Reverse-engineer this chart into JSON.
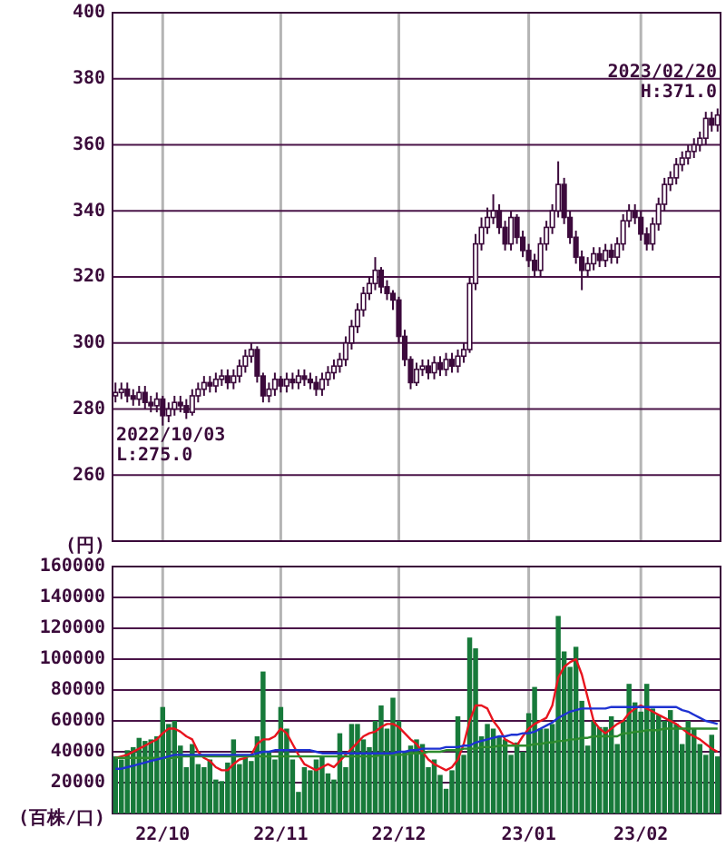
{
  "chart_data": [
    {
      "type": "candlestick",
      "color": "#3c0a3c",
      "ylabel": "(円)",
      "grid": true,
      "tick_labels": "y",
      "ylim": [
        240,
        400
      ],
      "yticks": [
        260,
        280,
        300,
        320,
        340,
        360,
        380,
        400
      ],
      "annotations": [
        "2022/10/03\nL:275.0",
        "2023/02/20\nH:371.0"
      ],
      "categories": [
        null,
        null,
        null,
        null,
        null,
        null,
        null,
        null,
        null,
        null,
        null,
        null,
        null,
        null,
        null,
        null,
        null,
        null,
        null,
        null,
        null,
        null,
        null,
        null,
        null,
        null,
        null,
        null,
        null,
        null,
        null,
        null,
        null,
        null,
        null,
        null,
        null,
        null,
        null,
        null,
        null,
        null,
        null,
        null,
        null,
        null,
        null,
        null,
        null,
        null,
        null,
        null,
        null,
        null,
        null,
        null,
        null,
        null,
        null,
        null,
        null,
        null,
        null,
        null,
        null,
        null,
        null,
        null,
        null,
        null,
        null,
        null,
        null,
        null,
        null,
        null,
        null,
        null,
        null,
        null,
        null,
        null,
        null,
        null,
        null,
        null,
        null,
        null,
        null,
        null,
        null,
        null,
        null,
        null,
        null,
        null,
        null,
        null,
        null,
        null,
        null,
        null,
        null
      ],
      "ohlc": [
        [
          284,
          288,
          282,
          285
        ],
        [
          285,
          288,
          283,
          286
        ],
        [
          286,
          288,
          282,
          284
        ],
        [
          284,
          286,
          281,
          283
        ],
        [
          283,
          287,
          281,
          285
        ],
        [
          285,
          287,
          280,
          282
        ],
        [
          282,
          284,
          279,
          281
        ],
        [
          281,
          285,
          279,
          283
        ],
        [
          283,
          284,
          275,
          278
        ],
        [
          278,
          282,
          276,
          280
        ],
        [
          280,
          284,
          278,
          282
        ],
        [
          282,
          284,
          279,
          281
        ],
        [
          281,
          283,
          277,
          279
        ],
        [
          279,
          286,
          278,
          284
        ],
        [
          284,
          288,
          282,
          286
        ],
        [
          286,
          290,
          284,
          288
        ],
        [
          288,
          290,
          285,
          287
        ],
        [
          287,
          291,
          285,
          289
        ],
        [
          289,
          292,
          287,
          290
        ],
        [
          290,
          292,
          286,
          288
        ],
        [
          288,
          292,
          286,
          290
        ],
        [
          290,
          295,
          288,
          293
        ],
        [
          293,
          298,
          291,
          296
        ],
        [
          296,
          300,
          294,
          298
        ],
        [
          298,
          299,
          288,
          290
        ],
        [
          290,
          291,
          282,
          284
        ],
        [
          284,
          288,
          282,
          286
        ],
        [
          286,
          291,
          284,
          289
        ],
        [
          289,
          290,
          285,
          287
        ],
        [
          287,
          291,
          285,
          289
        ],
        [
          289,
          291,
          286,
          288
        ],
        [
          288,
          292,
          286,
          290
        ],
        [
          290,
          292,
          287,
          289
        ],
        [
          289,
          291,
          286,
          288
        ],
        [
          288,
          290,
          284,
          286
        ],
        [
          286,
          291,
          284,
          289
        ],
        [
          289,
          293,
          287,
          291
        ],
        [
          291,
          295,
          289,
          293
        ],
        [
          293,
          297,
          291,
          295
        ],
        [
          295,
          302,
          293,
          300
        ],
        [
          300,
          307,
          298,
          305
        ],
        [
          305,
          312,
          303,
          310
        ],
        [
          310,
          317,
          308,
          315
        ],
        [
          315,
          320,
          313,
          318
        ],
        [
          318,
          326,
          316,
          322
        ],
        [
          322,
          323,
          315,
          317
        ],
        [
          317,
          319,
          313,
          315
        ],
        [
          315,
          316,
          310,
          313
        ],
        [
          313,
          314,
          300,
          302
        ],
        [
          302,
          304,
          293,
          295
        ],
        [
          295,
          296,
          286,
          288
        ],
        [
          288,
          294,
          287,
          292
        ],
        [
          292,
          295,
          290,
          293
        ],
        [
          293,
          295,
          289,
          291
        ],
        [
          291,
          296,
          289,
          294
        ],
        [
          294,
          296,
          290,
          292
        ],
        [
          292,
          297,
          290,
          295
        ],
        [
          295,
          297,
          291,
          293
        ],
        [
          293,
          298,
          291,
          296
        ],
        [
          296,
          300,
          294,
          298
        ],
        [
          298,
          320,
          297,
          318
        ],
        [
          318,
          333,
          316,
          330
        ],
        [
          330,
          338,
          328,
          335
        ],
        [
          335,
          341,
          333,
          338
        ],
        [
          338,
          345,
          336,
          340
        ],
        [
          340,
          342,
          333,
          335
        ],
        [
          335,
          337,
          328,
          330
        ],
        [
          330,
          340,
          328,
          338
        ],
        [
          338,
          339,
          330,
          332
        ],
        [
          332,
          334,
          326,
          328
        ],
        [
          328,
          330,
          323,
          325
        ],
        [
          325,
          327,
          320,
          322
        ],
        [
          322,
          332,
          320,
          330
        ],
        [
          330,
          337,
          328,
          335
        ],
        [
          335,
          342,
          333,
          340
        ],
        [
          340,
          355,
          338,
          348
        ],
        [
          348,
          350,
          336,
          338
        ],
        [
          338,
          340,
          330,
          332
        ],
        [
          332,
          334,
          324,
          326
        ],
        [
          326,
          328,
          316,
          322
        ],
        [
          322,
          326,
          320,
          324
        ],
        [
          324,
          329,
          322,
          327
        ],
        [
          327,
          329,
          323,
          325
        ],
        [
          325,
          330,
          323,
          328
        ],
        [
          328,
          330,
          324,
          326
        ],
        [
          326,
          332,
          324,
          330
        ],
        [
          330,
          339,
          328,
          337
        ],
        [
          337,
          342,
          335,
          340
        ],
        [
          340,
          342,
          336,
          338
        ],
        [
          338,
          340,
          331,
          333
        ],
        [
          333,
          335,
          328,
          330
        ],
        [
          330,
          338,
          328,
          336
        ],
        [
          336,
          344,
          334,
          342
        ],
        [
          342,
          350,
          340,
          348
        ],
        [
          348,
          352,
          346,
          350
        ],
        [
          350,
          356,
          348,
          354
        ],
        [
          354,
          358,
          352,
          356
        ],
        [
          356,
          360,
          354,
          358
        ],
        [
          358,
          362,
          356,
          360
        ],
        [
          360,
          364,
          358,
          362
        ],
        [
          362,
          370,
          360,
          368
        ],
        [
          368,
          370,
          364,
          366
        ],
        [
          366,
          371,
          364,
          369
        ]
      ]
    },
    {
      "type": "bar",
      "ylabel": "(百株/口)",
      "grid": true,
      "ylim": [
        0,
        160000
      ],
      "yticks": [
        20000,
        40000,
        60000,
        80000,
        100000,
        120000,
        140000,
        160000
      ],
      "categories": [
        null,
        null,
        null,
        null,
        null,
        null,
        null,
        null,
        "22/10",
        null,
        null,
        null,
        null,
        null,
        null,
        null,
        null,
        null,
        null,
        null,
        null,
        null,
        null,
        null,
        null,
        null,
        null,
        null,
        "22/11",
        null,
        null,
        null,
        null,
        null,
        null,
        null,
        null,
        null,
        null,
        null,
        null,
        null,
        null,
        null,
        null,
        null,
        null,
        null,
        "22/12",
        null,
        null,
        null,
        null,
        null,
        null,
        null,
        null,
        null,
        null,
        null,
        null,
        null,
        null,
        null,
        null,
        null,
        null,
        null,
        null,
        null,
        "23/01",
        null,
        null,
        null,
        null,
        null,
        null,
        null,
        null,
        null,
        null,
        null,
        null,
        null,
        null,
        null,
        null,
        null,
        null,
        "23/02",
        null,
        null,
        null,
        null,
        null,
        null,
        null,
        null,
        null,
        null,
        null,
        null,
        null
      ],
      "series": [
        {
          "color": "#177a3a",
          "values": [
            37000,
            35000,
            41000,
            43000,
            49000,
            47000,
            48000,
            50000,
            69000,
            58000,
            60000,
            44000,
            30000,
            45000,
            32000,
            30000,
            35000,
            22000,
            21000,
            33000,
            48000,
            32000,
            36000,
            34000,
            50000,
            92000,
            40000,
            35000,
            69000,
            55000,
            35000,
            14000,
            30000,
            28000,
            35000,
            37000,
            26000,
            22000,
            52000,
            30000,
            58000,
            58000,
            48000,
            43000,
            60000,
            70000,
            55000,
            75000,
            60000,
            40000,
            44000,
            48000,
            45000,
            30000,
            35000,
            25000,
            16000,
            28000,
            63000,
            38000,
            114000,
            107000,
            50000,
            58000,
            55000,
            50000,
            48000,
            38000,
            46000,
            40000,
            65000,
            82000,
            55000,
            55000,
            58000,
            128000,
            105000,
            95000,
            108000,
            73000,
            44000,
            60000,
            56000,
            56000,
            63000,
            45000,
            60000,
            84000,
            72000,
            66000,
            84000,
            68000,
            64000,
            60000,
            67000,
            58000,
            45000,
            60000,
            55000,
            45000,
            38000,
            51000,
            37000
          ]
        },
        {
          "type": "line",
          "color": "#e8141e",
          "values": [
            36000,
            37000,
            38000,
            40000,
            42000,
            44000,
            46000,
            48000,
            52000,
            55000,
            55000,
            53000,
            50000,
            48000,
            40000,
            36000,
            34000,
            30000,
            28000,
            28000,
            32000,
            35000,
            36000,
            38000,
            45000,
            48000,
            48000,
            50000,
            55000,
            52000,
            45000,
            38000,
            32000,
            30000,
            28000,
            30000,
            32000,
            30000,
            34000,
            38000,
            42000,
            46000,
            50000,
            52000,
            53000,
            56000,
            58000,
            58000,
            56000,
            52000,
            48000,
            45000,
            40000,
            35000,
            32000,
            30000,
            28000,
            30000,
            35000,
            45000,
            60000,
            70000,
            70000,
            68000,
            60000,
            55000,
            48000,
            46000,
            44000,
            50000,
            55000,
            58000,
            60000,
            62000,
            70000,
            88000,
            95000,
            98000,
            100000,
            90000,
            75000,
            60000,
            55000,
            52000,
            55000,
            58000,
            60000,
            65000,
            68000,
            70000,
            68000,
            66000,
            64000,
            62000,
            60000,
            58000,
            55000,
            52000,
            50000,
            48000,
            45000,
            42000,
            40000
          ]
        },
        {
          "type": "line",
          "color": "#2e8b2e",
          "values": [
            36000,
            36000,
            36000,
            36000,
            36000,
            36000,
            36000,
            36000,
            36000,
            36000,
            36000,
            37000,
            37000,
            37000,
            37000,
            37000,
            37000,
            37000,
            37000,
            37000,
            37000,
            37000,
            37000,
            37000,
            37000,
            37000,
            37000,
            37000,
            37000,
            37000,
            37000,
            37000,
            37000,
            37000,
            37000,
            37000,
            37000,
            37000,
            37000,
            37000,
            37000,
            37000,
            37000,
            37000,
            37000,
            38000,
            38000,
            38000,
            38000,
            38000,
            39000,
            39000,
            39000,
            40000,
            40000,
            40000,
            41000,
            41000,
            41000,
            42000,
            42000,
            42000,
            43000,
            43000,
            43000,
            44000,
            44000,
            44000,
            44000,
            44000,
            44000,
            45000,
            45000,
            46000,
            46000,
            47000,
            47000,
            48000,
            48000,
            49000,
            49000,
            50000,
            50000,
            50000,
            50000,
            50000,
            52000,
            52000,
            53000,
            53000,
            54000,
            54000,
            54000,
            55000,
            55000,
            55000,
            55000,
            55000,
            55000,
            55000,
            55000,
            55000,
            55000
          ]
        },
        {
          "type": "line",
          "color": "#1e32d2",
          "values": [
            29000,
            29000,
            30000,
            31000,
            32000,
            33000,
            34000,
            35000,
            36000,
            37000,
            38000,
            38000,
            38000,
            38000,
            38000,
            38000,
            38000,
            38000,
            38000,
            38000,
            38000,
            38000,
            38000,
            38000,
            39000,
            40000,
            40000,
            41000,
            41000,
            41000,
            41000,
            41000,
            41000,
            41000,
            40000,
            39000,
            39000,
            39000,
            39000,
            39000,
            39000,
            39000,
            39000,
            39000,
            39000,
            39000,
            39000,
            39000,
            40000,
            40000,
            41000,
            41000,
            42000,
            42000,
            42000,
            42000,
            43000,
            43000,
            43000,
            44000,
            44000,
            46000,
            47000,
            48000,
            49000,
            50000,
            50000,
            51000,
            51000,
            52000,
            52000,
            53000,
            55000,
            57000,
            59000,
            62000,
            64000,
            66000,
            67000,
            68000,
            68000,
            68000,
            68000,
            68000,
            69000,
            69000,
            69000,
            69000,
            69000,
            69000,
            69000,
            69000,
            69000,
            69000,
            69000,
            69000,
            67000,
            66000,
            64000,
            62000,
            60000,
            59000,
            58000
          ]
        }
      ]
    }
  ]
}
